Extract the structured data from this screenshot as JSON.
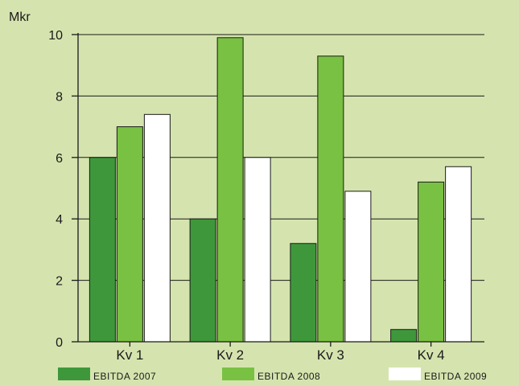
{
  "chart_data": {
    "type": "bar",
    "unit_label": "Mkr",
    "categories": [
      "Kv 1",
      "Kv 2",
      "Kv 3",
      "Kv 4"
    ],
    "series": [
      {
        "name": "EBITDA 2007",
        "values": [
          6.0,
          4.0,
          3.2,
          0.4
        ],
        "color": "#3e983b"
      },
      {
        "name": "EBITDA 2008",
        "values": [
          7.0,
          9.9,
          9.3,
          5.2
        ],
        "color": "#79c142"
      },
      {
        "name": "EBITDA 2009",
        "values": [
          7.4,
          6.0,
          4.9,
          5.7
        ],
        "color": "#ffffff"
      }
    ],
    "ylim": [
      0,
      10
    ],
    "yticks": [
      0,
      2,
      4,
      6,
      8,
      10
    ],
    "grid": true,
    "legend_position": "bottom",
    "background_color": "#d5e4ae"
  }
}
